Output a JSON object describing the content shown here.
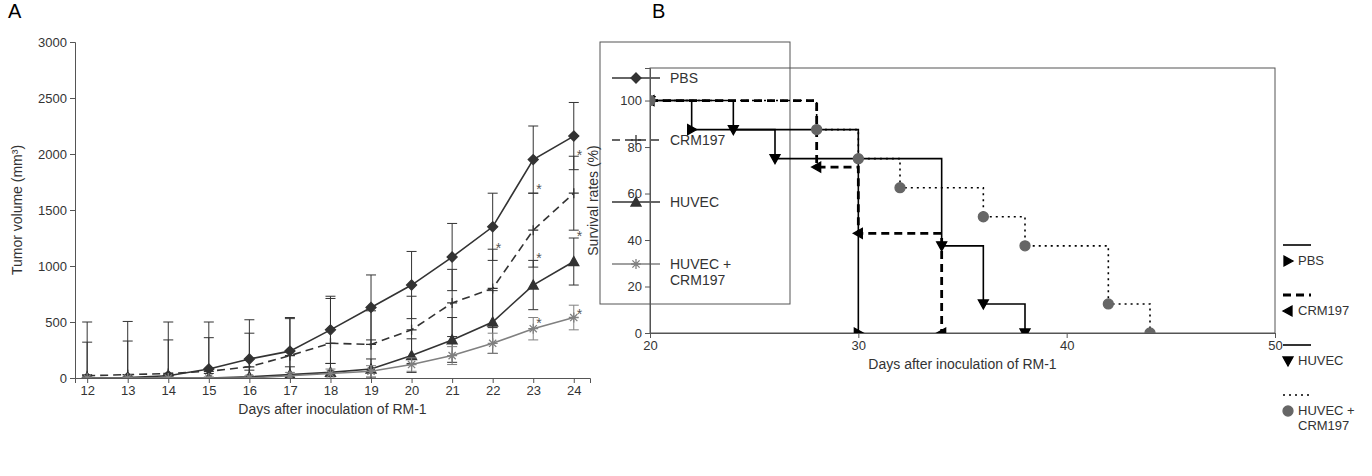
{
  "chart_data": [
    {
      "type": "line",
      "title": "A",
      "x_label": "Days after inoculation of RM-1",
      "y_label": "Tumor volume (mm³)",
      "x": [
        12,
        13,
        14,
        15,
        16,
        17,
        18,
        19,
        20,
        21,
        22,
        23,
        24
      ],
      "xlim": [
        11.7,
        24.4
      ],
      "xticks": [
        12,
        13,
        14,
        15,
        16,
        17,
        18,
        19,
        20,
        21,
        22,
        23,
        24
      ],
      "ylim": [
        0,
        3000
      ],
      "yticks": [
        0,
        500,
        1000,
        1500,
        2000,
        2500,
        3000
      ],
      "legend": "right",
      "series": [
        {
          "name": "PBS",
          "color": "#333333",
          "marker": "diamond",
          "line_style": "solid",
          "values": [
            0,
            5,
            20,
            80,
            170,
            240,
            430,
            630,
            830,
            1080,
            1350,
            1950,
            2160
          ],
          "errors": [
            500,
            500,
            480,
            420,
            350,
            300,
            300,
            290,
            300,
            300,
            300,
            300,
            300
          ]
        },
        {
          "name": "CRM197",
          "color": "#333333",
          "marker": "plus",
          "line_style": "dashed",
          "values": [
            20,
            30,
            40,
            60,
            100,
            200,
            310,
            300,
            430,
            670,
            800,
            1320,
            1650
          ],
          "errors": [
            300,
            300,
            300,
            300,
            300,
            330,
            400,
            300,
            300,
            300,
            350,
            330,
            330
          ]
        },
        {
          "name": "HUVEC",
          "color": "#333333",
          "marker": "triangle",
          "line_style": "solid",
          "values": [
            0,
            0,
            0,
            0,
            10,
            30,
            50,
            80,
            200,
            340,
            500,
            830,
            1040
          ],
          "errors": [
            30,
            30,
            30,
            40,
            60,
            70,
            80,
            90,
            150,
            200,
            280,
            220,
            210
          ]
        },
        {
          "name": "HUVEC + CRM197",
          "color": "#808080",
          "marker": "asterisk",
          "line_style": "solid",
          "values": [
            0,
            0,
            0,
            0,
            0,
            20,
            40,
            60,
            120,
            200,
            310,
            440,
            540
          ],
          "errors": [
            10,
            10,
            10,
            10,
            20,
            30,
            40,
            50,
            60,
            80,
            90,
            100,
            110
          ]
        }
      ],
      "annotations": [
        {
          "text": "*",
          "x": 22,
          "y": 1150
        },
        {
          "text": "*",
          "x": 23,
          "y": 1680
        },
        {
          "text": "*",
          "x": 24,
          "y": 1980
        },
        {
          "text": "*",
          "x": 23,
          "y": 1060
        },
        {
          "text": "*",
          "x": 24,
          "y": 1260
        },
        {
          "text": "*",
          "x": 23,
          "y": 480
        },
        {
          "text": "*",
          "x": 24,
          "y": 560
        }
      ]
    },
    {
      "type": "step",
      "title": "B",
      "x_label": "Days after inoculation of RM-1",
      "y_label": "Survival rates (%)",
      "xlim": [
        20,
        50
      ],
      "xticks": [
        20,
        30,
        40,
        50
      ],
      "ylim": [
        0,
        114
      ],
      "yticks": [
        0,
        20,
        40,
        60,
        80,
        100
      ],
      "legend": "right",
      "series": [
        {
          "name": "PBS",
          "color": "#000000",
          "marker": "triangle-right",
          "line_style": "solid",
          "x": [
            20,
            22,
            30
          ],
          "values": [
            100,
            87.5,
            0
          ]
        },
        {
          "name": "CRM197",
          "color": "#000000",
          "marker": "triangle-left",
          "line_style": "dashed",
          "x": [
            20,
            28,
            30,
            34
          ],
          "values": [
            100,
            71.4,
            42.9,
            0
          ]
        },
        {
          "name": "HUVEC",
          "color": "#000000",
          "marker": "triangle-down",
          "line_style": "solid",
          "x": [
            20,
            24,
            26,
            34,
            36,
            38
          ],
          "values": [
            100,
            87.5,
            75,
            37.5,
            12.5,
            0
          ]
        },
        {
          "name": "HUVEC + CRM197",
          "color": "#666666",
          "marker": "circle",
          "line_style": "dotted",
          "x": [
            20,
            28,
            30,
            32,
            36,
            38,
            42,
            44
          ],
          "values": [
            100,
            87.5,
            75,
            62.5,
            50,
            37.5,
            12.5,
            0
          ]
        }
      ]
    }
  ]
}
